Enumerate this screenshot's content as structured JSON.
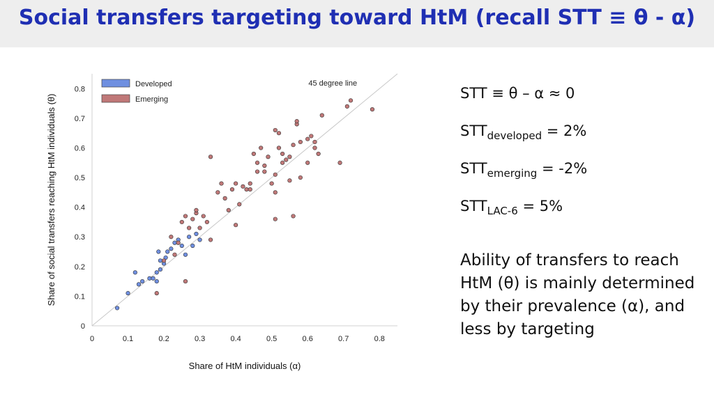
{
  "title": "Social transfers targeting toward HtM (recall STT ≡ θ - α)",
  "equations": {
    "e1": "STT ≡ θ – α ≈ 0",
    "e2_base": "STT",
    "e2_sub": "developed",
    "e2_val": " = 2%",
    "e3_base": "STT",
    "e3_sub": "emerging",
    "e3_val": " = -2%",
    "e4_base": "STT",
    "e4_sub": "LAC-6",
    "e4_val": " = 5%"
  },
  "paragraph": "Ability of transfers to reach HtM (θ) is mainly determined by their prevalence (α), and less by targeting",
  "chart_data": {
    "type": "scatter",
    "xlabel": "Share of HtM individuals (α)",
    "ylabel": "Share of social transfers reaching HtM individuals (θ)",
    "xlim": [
      0,
      0.85
    ],
    "ylim": [
      0,
      0.85
    ],
    "xticks": [
      0,
      0.1,
      0.2,
      0.3,
      0.4,
      0.5,
      0.6,
      0.7,
      0.8
    ],
    "yticks": [
      0,
      0.1,
      0.2,
      0.3,
      0.4,
      0.5,
      0.6,
      0.7,
      0.8
    ],
    "xtick_labels": [
      "0",
      "0.1",
      "0.2",
      "0.3",
      "0.4",
      "0.5",
      "0.6",
      "0.7",
      "0.8"
    ],
    "ytick_labels": [
      "0",
      "0.1",
      "0.2",
      "0.3",
      "0.4",
      "0.5",
      "0.6",
      "0.7",
      "0.8"
    ],
    "reference_line_label": "45 degree line",
    "legend": [
      "Developed",
      "Emerging"
    ],
    "colors": {
      "developed": "#6f8fe0",
      "emerging": "#c07878",
      "diag": "#c8c8c8",
      "title": "#1f2fb3"
    },
    "series": [
      {
        "name": "Developed",
        "points": [
          [
            0.07,
            0.06
          ],
          [
            0.1,
            0.11
          ],
          [
            0.12,
            0.18
          ],
          [
            0.13,
            0.14
          ],
          [
            0.14,
            0.15
          ],
          [
            0.16,
            0.16
          ],
          [
            0.17,
            0.16
          ],
          [
            0.18,
            0.18
          ],
          [
            0.185,
            0.25
          ],
          [
            0.19,
            0.22
          ],
          [
            0.19,
            0.19
          ],
          [
            0.2,
            0.21
          ],
          [
            0.205,
            0.23
          ],
          [
            0.21,
            0.25
          ],
          [
            0.22,
            0.26
          ],
          [
            0.23,
            0.28
          ],
          [
            0.24,
            0.29
          ],
          [
            0.25,
            0.27
          ],
          [
            0.27,
            0.3
          ],
          [
            0.28,
            0.27
          ],
          [
            0.29,
            0.31
          ],
          [
            0.3,
            0.29
          ],
          [
            0.26,
            0.24
          ],
          [
            0.18,
            0.15
          ]
        ]
      },
      {
        "name": "Emerging",
        "points": [
          [
            0.18,
            0.11
          ],
          [
            0.2,
            0.22
          ],
          [
            0.22,
            0.3
          ],
          [
            0.23,
            0.24
          ],
          [
            0.24,
            0.28
          ],
          [
            0.25,
            0.35
          ],
          [
            0.26,
            0.15
          ],
          [
            0.26,
            0.37
          ],
          [
            0.27,
            0.33
          ],
          [
            0.28,
            0.36
          ],
          [
            0.29,
            0.38
          ],
          [
            0.29,
            0.39
          ],
          [
            0.3,
            0.33
          ],
          [
            0.31,
            0.37
          ],
          [
            0.32,
            0.35
          ],
          [
            0.33,
            0.29
          ],
          [
            0.33,
            0.57
          ],
          [
            0.35,
            0.45
          ],
          [
            0.36,
            0.48
          ],
          [
            0.37,
            0.43
          ],
          [
            0.38,
            0.39
          ],
          [
            0.39,
            0.46
          ],
          [
            0.4,
            0.48
          ],
          [
            0.41,
            0.41
          ],
          [
            0.42,
            0.47
          ],
          [
            0.43,
            0.46
          ],
          [
            0.44,
            0.48
          ],
          [
            0.44,
            0.46
          ],
          [
            0.45,
            0.58
          ],
          [
            0.46,
            0.52
          ],
          [
            0.47,
            0.6
          ],
          [
            0.48,
            0.54
          ],
          [
            0.48,
            0.52
          ],
          [
            0.49,
            0.57
          ],
          [
            0.5,
            0.48
          ],
          [
            0.51,
            0.51
          ],
          [
            0.51,
            0.66
          ],
          [
            0.52,
            0.6
          ],
          [
            0.52,
            0.65
          ],
          [
            0.53,
            0.58
          ],
          [
            0.54,
            0.56
          ],
          [
            0.55,
            0.49
          ],
          [
            0.56,
            0.61
          ],
          [
            0.57,
            0.68
          ],
          [
            0.57,
            0.69
          ],
          [
            0.58,
            0.62
          ],
          [
            0.6,
            0.63
          ],
          [
            0.61,
            0.64
          ],
          [
            0.62,
            0.62
          ],
          [
            0.63,
            0.58
          ],
          [
            0.64,
            0.71
          ],
          [
            0.56,
            0.37
          ],
          [
            0.51,
            0.45
          ],
          [
            0.51,
            0.36
          ],
          [
            0.69,
            0.55
          ],
          [
            0.71,
            0.74
          ],
          [
            0.72,
            0.76
          ],
          [
            0.78,
            0.73
          ],
          [
            0.58,
            0.5
          ],
          [
            0.6,
            0.55
          ],
          [
            0.55,
            0.57
          ],
          [
            0.53,
            0.55
          ],
          [
            0.62,
            0.6
          ],
          [
            0.4,
            0.34
          ],
          [
            0.46,
            0.55
          ]
        ]
      }
    ]
  }
}
